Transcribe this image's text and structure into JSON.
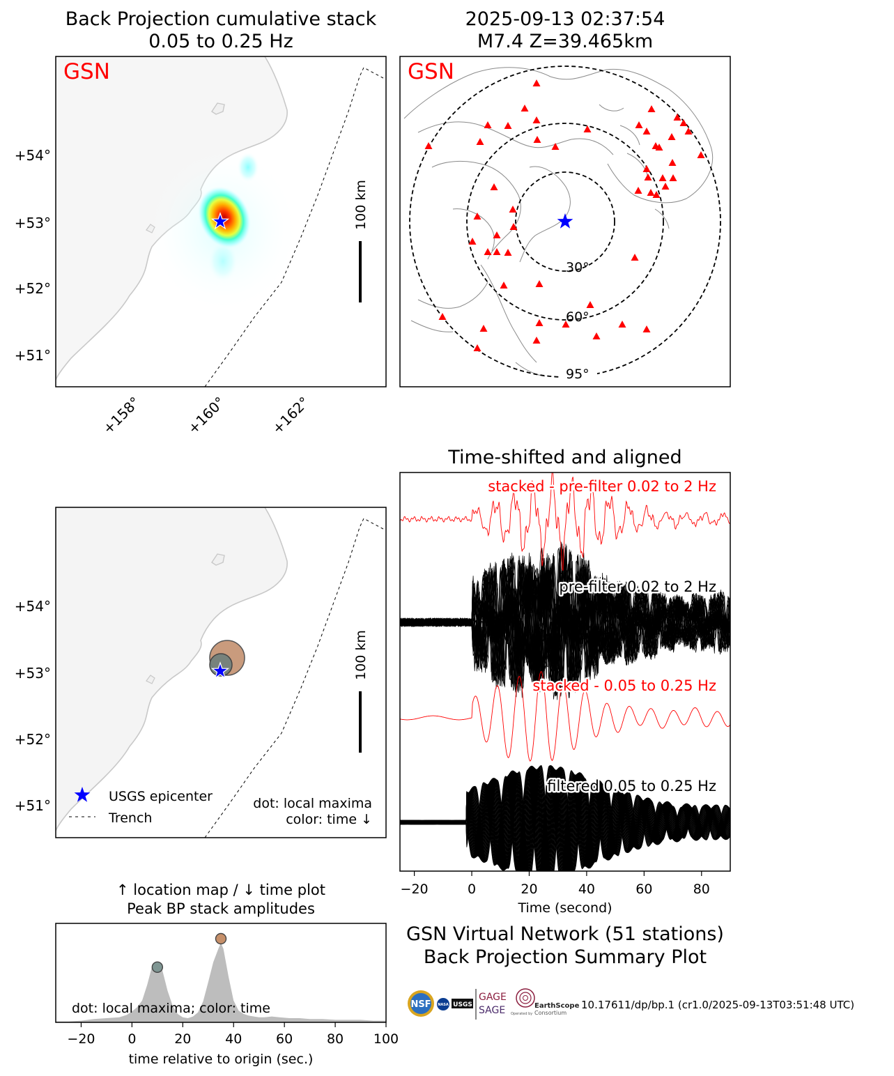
{
  "colors": {
    "accent_red": "#ff0000",
    "star_blue": "#0000ff",
    "coast_gray": "#bbbbbb",
    "land_fill": "#f4f4f4",
    "peak_early": "#7f9693",
    "peak_late": "#c6906a"
  },
  "map_stack": {
    "title_line1": "Back Projection cumulative stack",
    "title_line2": "0.05 to 0.25 Hz",
    "network_label": "GSN",
    "scale_label": "100 km",
    "lat_ticks": [
      "+54°",
      "+53°",
      "+52°",
      "+51°"
    ],
    "lon_ticks": [
      "+158°",
      "+160°",
      "+162°"
    ]
  },
  "map_global": {
    "title_line1": "2025-09-13 02:37:54",
    "title_line2": "M7.4 Z=39.465km",
    "network_label": "GSN",
    "ring_labels": [
      "30°",
      "60°",
      "95°"
    ],
    "station_count": 51
  },
  "map_peaks": {
    "scale_label": "100 km",
    "lat_ticks": [
      "+54°",
      "+53°",
      "+52°",
      "+51°"
    ],
    "legend_epicenter": "USGS epicenter",
    "legend_trench": "Trench",
    "note_line1": "dot: local maxima",
    "note_line2": "color: time ↓"
  },
  "chart_data": [
    {
      "type": "line",
      "title": "Time-shifted and aligned",
      "xlabel": "Time (second)",
      "ylabel": "",
      "xlim": [
        -25,
        90
      ],
      "x_ticks": [
        -20,
        0,
        20,
        40,
        60,
        80
      ],
      "series": [
        {
          "name": "stacked - pre-filter 0.02 to 2 Hz",
          "color": "#ff0000"
        },
        {
          "name": "pre-filter 0.02 to 2 Hz",
          "color": "#000000"
        },
        {
          "name": "stacked - 0.05 to 0.25 Hz",
          "color": "#ff0000"
        },
        {
          "name": "filtered 0.05 to 0.25 Hz",
          "color": "#000000"
        }
      ]
    },
    {
      "type": "area",
      "title_line1": "↑ location map / ↓ time plot",
      "title_line2": "Peak BP stack amplitudes",
      "xlabel": "time relative to origin (sec.)",
      "xlim": [
        -30,
        100
      ],
      "x_ticks": [
        -20,
        0,
        20,
        40,
        60,
        80,
        100
      ],
      "annotation": "dot: local maxima; color: time",
      "x": [
        -30,
        -25,
        -20,
        -15,
        -10,
        -5,
        -2,
        0,
        2,
        4,
        6,
        8,
        10,
        12,
        14,
        16,
        18,
        20,
        22,
        24,
        26,
        28,
        30,
        32,
        34,
        35,
        36,
        38,
        40,
        42,
        44,
        46,
        48,
        50,
        52,
        55,
        58,
        62,
        66,
        70,
        75,
        80,
        85,
        90,
        95,
        100
      ],
      "values": [
        0.01,
        0.01,
        0.02,
        0.04,
        0.05,
        0.06,
        0.09,
        0.13,
        0.18,
        0.26,
        0.45,
        0.68,
        0.72,
        0.62,
        0.38,
        0.2,
        0.1,
        0.06,
        0.05,
        0.07,
        0.12,
        0.25,
        0.48,
        0.72,
        0.88,
        0.95,
        0.88,
        0.55,
        0.26,
        0.14,
        0.1,
        0.08,
        0.07,
        0.06,
        0.06,
        0.07,
        0.06,
        0.05,
        0.05,
        0.04,
        0.04,
        0.03,
        0.03,
        0.03,
        0.02,
        0.02
      ],
      "peaks": [
        {
          "t": 10,
          "amp": 0.66
        },
        {
          "t": 35,
          "amp": 1.0
        }
      ]
    }
  ],
  "summary": {
    "line1": "GSN Virtual Network (51 stations)",
    "line2": "Back Projection Summary Plot",
    "doi": "10.17611/dp/bp.1 (cr1.0/2025-09-13T03:51:48 UTC)",
    "logo_nsf": "NSF",
    "logo_nasa": "NASA",
    "logo_usgs": "USGS",
    "logo_gage": "GAGE",
    "logo_sage": "SAGE",
    "logo_earthscope": "EarthScope",
    "logo_consortium": "Consortium",
    "logo_operated": "Operated by"
  }
}
